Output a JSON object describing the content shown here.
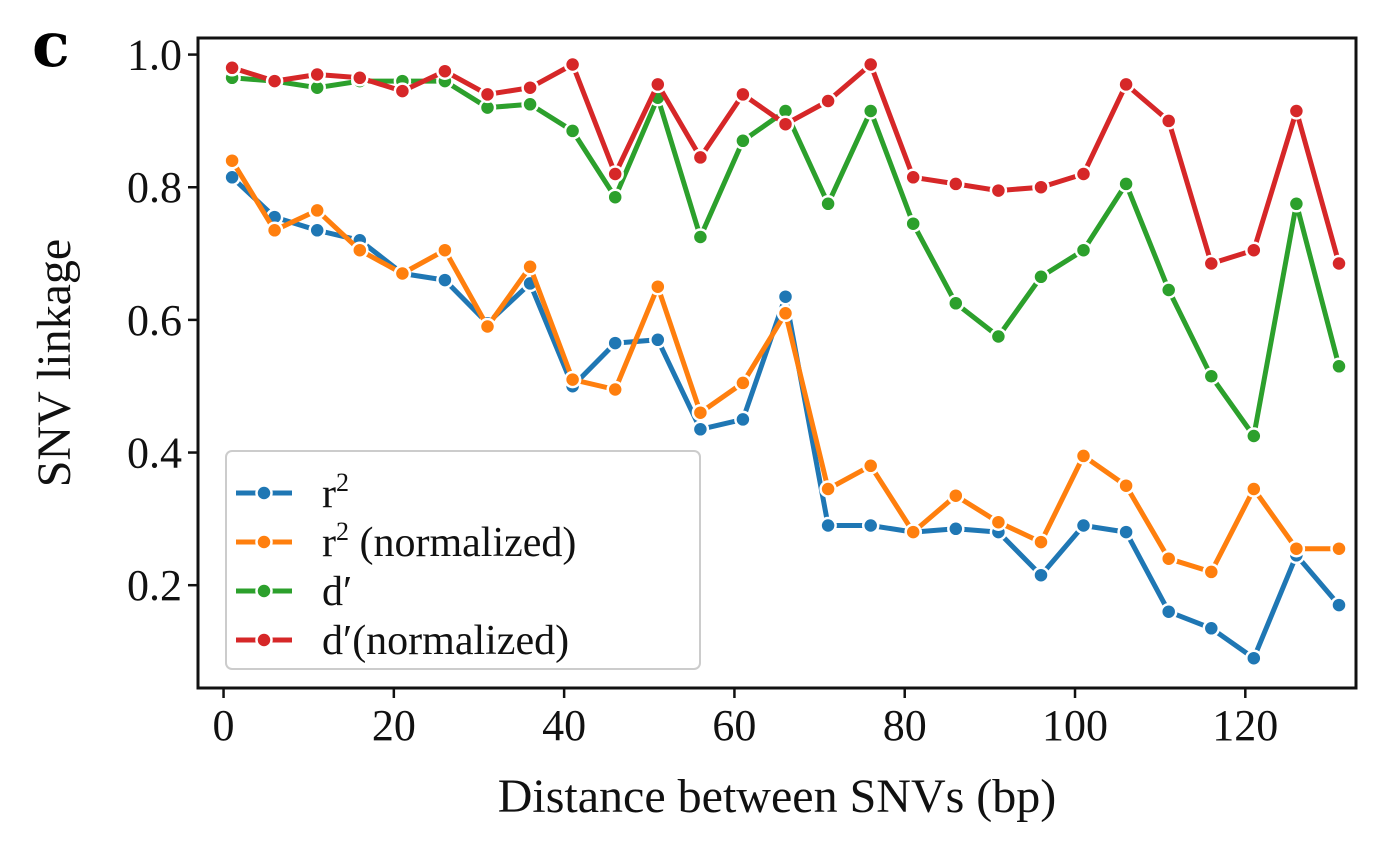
{
  "panel_label": "c",
  "chart_data": {
    "type": "line",
    "title": "",
    "xlabel": "Distance between SNVs (bp)",
    "ylabel": "SNV linkage",
    "xlim": [
      -3,
      133
    ],
    "ylim": [
      0.045,
      1.025
    ],
    "xticks": [
      0,
      20,
      40,
      60,
      80,
      100,
      120
    ],
    "yticks": [
      0.2,
      0.4,
      0.6,
      0.8,
      1.0
    ],
    "ytick_labels": [
      "0.2",
      "0.4",
      "0.6",
      "0.8",
      "1.0"
    ],
    "grid": false,
    "legend_position": "lower-left",
    "x": [
      1,
      6,
      11,
      16,
      21,
      26,
      31,
      36,
      41,
      46,
      51,
      56,
      61,
      66,
      71,
      76,
      81,
      86,
      91,
      96,
      101,
      106,
      111,
      116,
      121,
      126,
      131
    ],
    "series": [
      {
        "name": "r",
        "name_superscript": "2",
        "name_suffix": "",
        "color": "#1f77b4",
        "values": [
          0.815,
          0.755,
          0.735,
          0.72,
          0.67,
          0.66,
          0.595,
          0.655,
          0.5,
          0.565,
          0.57,
          0.435,
          0.45,
          0.635,
          0.29,
          0.29,
          0.28,
          0.285,
          0.28,
          0.215,
          0.29,
          0.28,
          0.16,
          0.135,
          0.09,
          0.245,
          0.17
        ]
      },
      {
        "name": "r",
        "name_superscript": "2",
        "name_suffix": " (normalized)",
        "color": "#ff7f0e",
        "values": [
          0.84,
          0.735,
          0.765,
          0.705,
          0.67,
          0.705,
          0.59,
          0.68,
          0.51,
          0.495,
          0.65,
          0.46,
          0.505,
          0.61,
          0.345,
          0.38,
          0.28,
          0.335,
          0.295,
          0.265,
          0.395,
          0.35,
          0.24,
          0.22,
          0.345,
          0.255,
          0.255
        ]
      },
      {
        "name": "d′",
        "name_superscript": "",
        "name_suffix": "",
        "color": "#2ca02c",
        "values": [
          0.965,
          0.96,
          0.95,
          0.96,
          0.96,
          0.96,
          0.92,
          0.925,
          0.885,
          0.785,
          0.935,
          0.725,
          0.87,
          0.915,
          0.775,
          0.915,
          0.745,
          0.625,
          0.575,
          0.665,
          0.705,
          0.805,
          0.645,
          0.515,
          0.425,
          0.775,
          0.53
        ]
      },
      {
        "name": "d′(normalized)",
        "name_superscript": "",
        "name_suffix": "",
        "color": "#d62728",
        "values": [
          0.98,
          0.96,
          0.97,
          0.965,
          0.945,
          0.975,
          0.94,
          0.95,
          0.985,
          0.82,
          0.955,
          0.845,
          0.94,
          0.895,
          0.93,
          0.985,
          0.815,
          0.805,
          0.795,
          0.8,
          0.82,
          0.955,
          0.9,
          0.685,
          0.705,
          0.915,
          0.685
        ]
      }
    ]
  }
}
